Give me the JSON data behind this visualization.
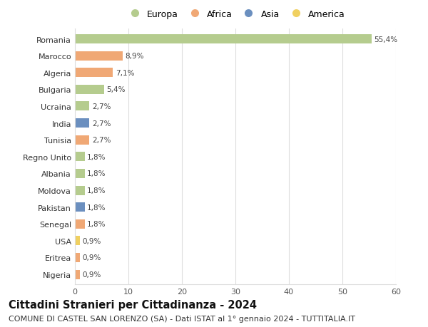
{
  "countries": [
    "Nigeria",
    "Eritrea",
    "USA",
    "Senegal",
    "Pakistan",
    "Moldova",
    "Albania",
    "Regno Unito",
    "Tunisia",
    "India",
    "Ucraina",
    "Bulgaria",
    "Algeria",
    "Marocco",
    "Romania"
  ],
  "values": [
    0.9,
    0.9,
    0.9,
    1.8,
    1.8,
    1.8,
    1.8,
    1.8,
    2.7,
    2.7,
    2.7,
    5.4,
    7.1,
    8.9,
    55.4
  ],
  "continents": [
    "Africa",
    "Africa",
    "America",
    "Africa",
    "Asia",
    "Europa",
    "Europa",
    "Europa",
    "Africa",
    "Asia",
    "Europa",
    "Europa",
    "Africa",
    "Africa",
    "Europa"
  ],
  "labels": [
    "0,9%",
    "0,9%",
    "0,9%",
    "1,8%",
    "1,8%",
    "1,8%",
    "1,8%",
    "1,8%",
    "2,7%",
    "2,7%",
    "2,7%",
    "5,4%",
    "7,1%",
    "8,9%",
    "55,4%"
  ],
  "continent_colors": {
    "Europa": "#b5cc8e",
    "Africa": "#f0a875",
    "Asia": "#6b8fbf",
    "America": "#f0d060"
  },
  "legend_order": [
    "Europa",
    "Africa",
    "Asia",
    "America"
  ],
  "title": "Cittadini Stranieri per Cittadinanza - 2024",
  "subtitle": "COMUNE DI CASTEL SAN LORENZO (SA) - Dati ISTAT al 1° gennaio 2024 - TUTTITALIA.IT",
  "xlim": [
    0,
    60
  ],
  "xticks": [
    0,
    10,
    20,
    30,
    40,
    50,
    60
  ],
  "background_color": "#ffffff",
  "grid_color": "#dddddd",
  "bar_height": 0.55,
  "title_fontsize": 10.5,
  "subtitle_fontsize": 8,
  "label_fontsize": 7.5,
  "tick_fontsize": 8,
  "legend_fontsize": 9
}
